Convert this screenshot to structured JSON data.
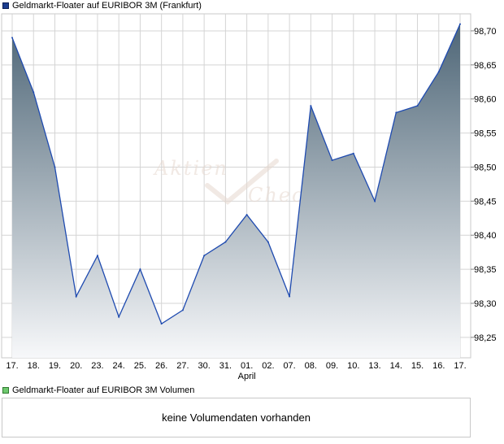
{
  "legend": {
    "price_label": "Geldmarkt-Floater auf EURIBOR 3M (Frankfurt)",
    "volume_label": "Geldmarkt-Floater auf EURIBOR 3M Volumen"
  },
  "watermark": {
    "line1": "Aktien",
    "line2": "Check"
  },
  "volume_panel": {
    "message": "keine Volumendaten vorhanden"
  },
  "colors": {
    "line": "#1f4bb0",
    "fill_top": "#4e6677",
    "fill_bottom": "#f7f8fa",
    "grid": "#d4d4d4",
    "border": "#c8c8c8"
  },
  "chart_data": {
    "type": "area",
    "x": [
      "17.",
      "18.",
      "19.",
      "20.",
      "23.",
      "24.",
      "25.",
      "26.",
      "27.",
      "30.",
      "31.",
      "01.",
      "02.",
      "07.",
      "08.",
      "09.",
      "10.",
      "13.",
      "14.",
      "15.",
      "16.",
      "17."
    ],
    "month_labels": [
      {
        "index": 11,
        "label": "April"
      }
    ],
    "series": [
      {
        "values": [
          98.69,
          98.61,
          98.5,
          98.31,
          98.37,
          98.28,
          98.35,
          98.27,
          98.29,
          98.37,
          98.39,
          98.43,
          98.39,
          98.31,
          98.59,
          98.51,
          98.52,
          98.45,
          98.58,
          98.59,
          98.64,
          98.71
        ]
      }
    ],
    "y_ticks": [
      "98,70",
      "98,65",
      "98,60",
      "98,55",
      "98,50",
      "98,45",
      "98,40",
      "98,35",
      "98,30",
      "98,25"
    ],
    "ylim": [
      98.22,
      98.725
    ],
    "grid": true,
    "y_axis_side": "right"
  }
}
